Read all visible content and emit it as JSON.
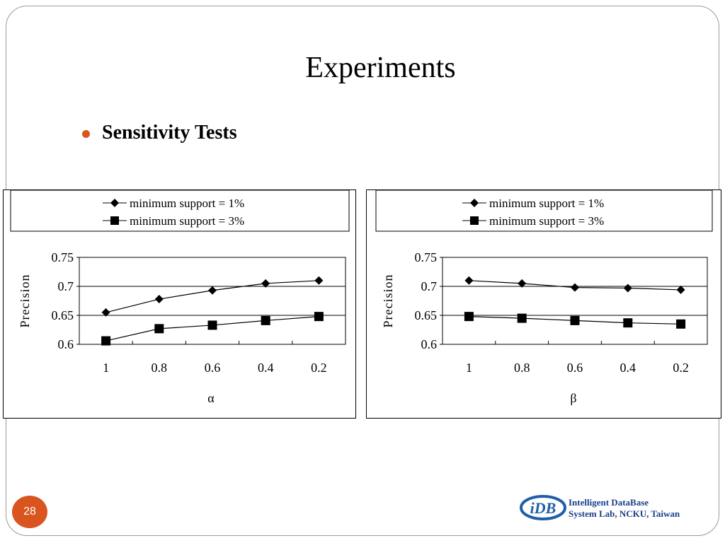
{
  "slide": {
    "title": "Experiments",
    "bullet": "Sensitivity Tests",
    "page_number": "28",
    "lab_name_line1": "Intelligent DataBase",
    "lab_name_line2": "System Lab, NCKU, Taiwan",
    "logo_text": "iDB"
  },
  "colors": {
    "accent_orange": "#d9541e",
    "logo_blue": "#1f5fa8",
    "lab_text_blue": "#1a3f8a",
    "frame_gray": "#9a9a9a"
  },
  "chart_data": [
    {
      "type": "line",
      "title": "",
      "xlabel": "α",
      "ylabel": "Precision",
      "categories": [
        "1",
        "0.8",
        "0.6",
        "0.4",
        "0.2"
      ],
      "ylim": [
        0.6,
        0.75
      ],
      "yticks": [
        "0.6",
        "0.65",
        "0.7",
        "0.75"
      ],
      "grid": true,
      "legend_position": "top",
      "series": [
        {
          "name": "minimum support = 1%",
          "marker": "diamond",
          "values": [
            0.655,
            0.678,
            0.693,
            0.705,
            0.71
          ]
        },
        {
          "name": "minimum support = 3%",
          "marker": "square",
          "values": [
            0.606,
            0.627,
            0.633,
            0.641,
            0.648
          ]
        }
      ]
    },
    {
      "type": "line",
      "title": "",
      "xlabel": "β",
      "ylabel": "Precision",
      "categories": [
        "1",
        "0.8",
        "0.6",
        "0.4",
        "0.2"
      ],
      "ylim": [
        0.6,
        0.75
      ],
      "yticks": [
        "0.6",
        "0.65",
        "0.7",
        "0.75"
      ],
      "grid": true,
      "legend_position": "top",
      "series": [
        {
          "name": "minimum support = 1%",
          "marker": "diamond",
          "values": [
            0.71,
            0.705,
            0.698,
            0.697,
            0.694
          ]
        },
        {
          "name": "minimum support = 3%",
          "marker": "square",
          "values": [
            0.648,
            0.645,
            0.641,
            0.637,
            0.635
          ]
        }
      ]
    }
  ]
}
